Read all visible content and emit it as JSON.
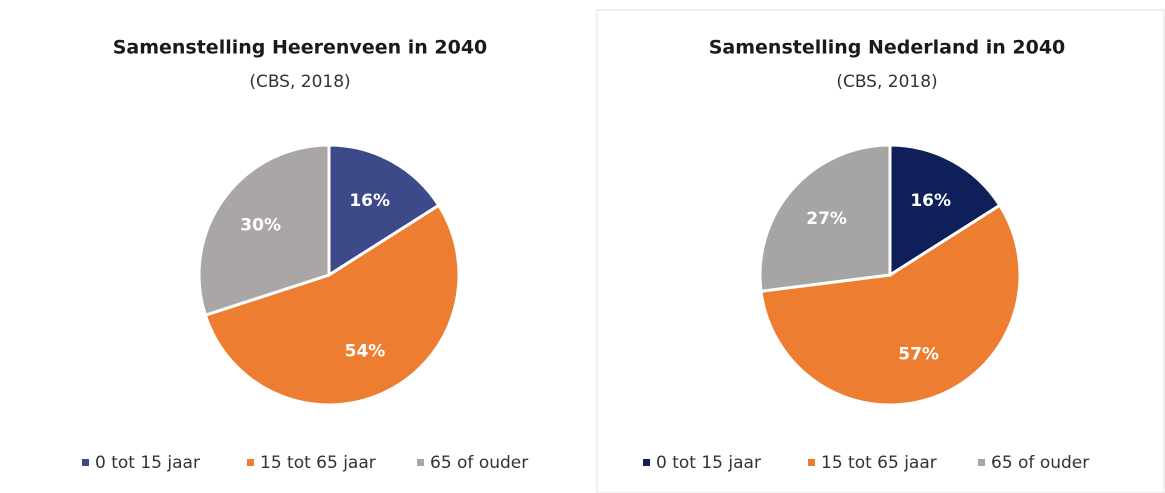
{
  "chart_data": [
    {
      "type": "pie",
      "title": "Samenstelling Heerenveen in 2040",
      "subtitle": "(CBS, 2018)",
      "categories": [
        "0 tot 15 jaar",
        "15 tot 65 jaar",
        "65 of ouder"
      ],
      "values": [
        16,
        54,
        30
      ],
      "value_labels": [
        "16%",
        "54%",
        "30%"
      ],
      "colors": [
        "#3d4a89",
        "#ed7d31",
        "#aaa6a6"
      ],
      "legend": "bottom"
    },
    {
      "type": "pie",
      "title": "Samenstelling Nederland in 2040",
      "subtitle": "(CBS, 2018)",
      "categories": [
        "0 tot 15 jaar",
        "15 tot 65 jaar",
        "65 of ouder"
      ],
      "values": [
        16,
        57,
        27
      ],
      "value_labels": [
        "16%",
        "57%",
        "27%"
      ],
      "colors": [
        "#0f1f5a",
        "#ed7d31",
        "#a5a5a5"
      ],
      "legend": "bottom"
    }
  ]
}
